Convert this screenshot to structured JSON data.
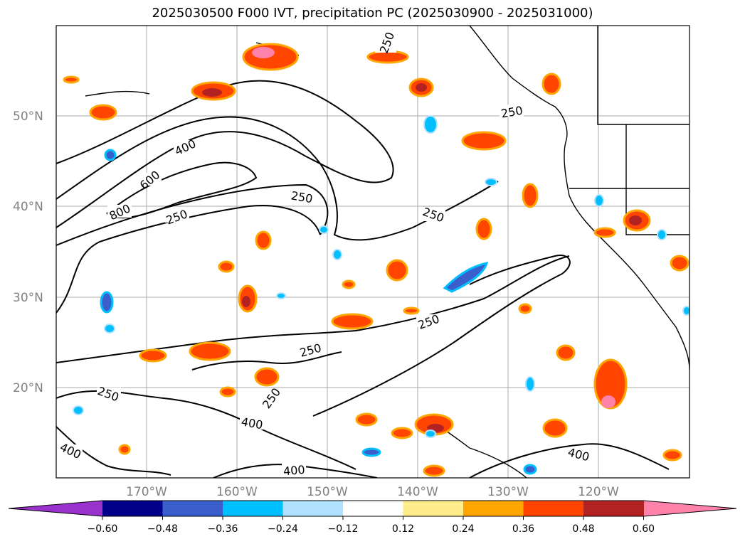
{
  "title": "2025030500 F000 IVT, precipitation PC (2025030900 - 2025031000)",
  "lat_labels": [
    "50°N",
    "40°N",
    "30°N",
    "20°N"
  ],
  "lon_labels": [
    "170°W",
    "160°W",
    "150°W",
    "140°W",
    "130°W",
    "120°W"
  ],
  "contour_labels": [
    "250",
    "250",
    "400",
    "600",
    "800",
    "250",
    "250",
    "250",
    "250",
    "250",
    "250",
    "250",
    "400",
    "400",
    "400",
    "400"
  ],
  "colorbar": {
    "ticks": [
      "−0.60",
      "−0.48",
      "−0.36",
      "−0.24",
      "−0.12",
      "0.12",
      "0.24",
      "0.36",
      "0.48",
      "0.60"
    ],
    "colors": [
      "#9932cc",
      "#00008b",
      "#3a5fcd",
      "#00bfff",
      "#b0e2ff",
      "#ffffff",
      "#ffec8b",
      "#ffa500",
      "#ff4500",
      "#b22222",
      "#ff82ab"
    ]
  }
}
